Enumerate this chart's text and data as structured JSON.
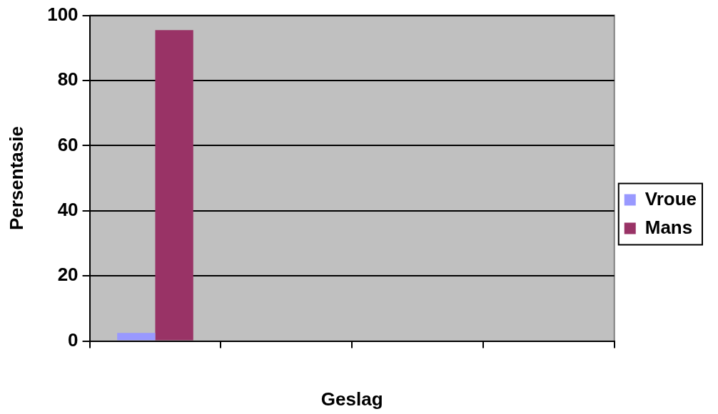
{
  "chart_data": {
    "type": "bar",
    "xlabel": "Geslag",
    "ylabel": "Persentasie",
    "categories": [
      null,
      null,
      null,
      null
    ],
    "series": [
      {
        "name": "Vroue",
        "color": "#9999ff",
        "values": [
          2.5,
          null,
          null,
          null
        ]
      },
      {
        "name": "Mans",
        "color": "#993366",
        "values": [
          95.5,
          null,
          null,
          null
        ]
      }
    ],
    "ylim": [
      0,
      100
    ],
    "yticks": [
      0,
      20,
      40,
      60,
      80,
      100
    ],
    "grid": "y",
    "legend": "right"
  }
}
